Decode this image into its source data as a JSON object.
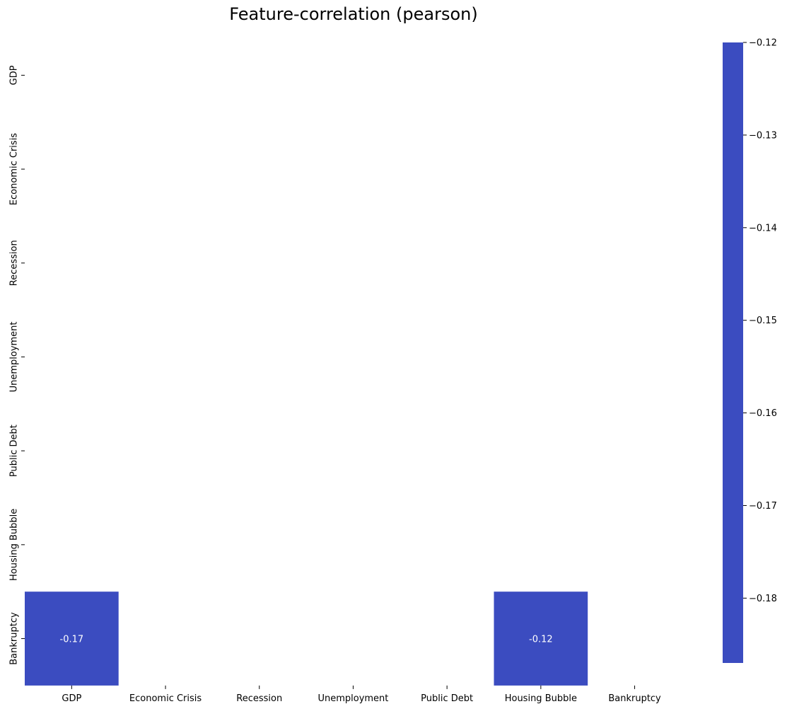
{
  "chart_data": {
    "type": "heatmap",
    "title": "Feature-correlation (pearson)",
    "xlabel": "",
    "ylabel": "",
    "x_categories": [
      "GDP",
      "Economic Crisis",
      "Recession",
      "Unemployment",
      "Public Debt",
      "Housing Bubble",
      "Bankruptcy"
    ],
    "y_categories": [
      "GDP",
      "Economic Crisis",
      "Recession",
      "Unemployment",
      "Public Debt",
      "Housing Bubble",
      "Bankruptcy"
    ],
    "cells": [
      {
        "row": "Bankruptcy",
        "col": "GDP",
        "value": -0.17,
        "label": "-0.17"
      },
      {
        "row": "Bankruptcy",
        "col": "Housing Bubble",
        "value": -0.12,
        "label": "-0.12"
      }
    ],
    "colorbar": {
      "range": [
        -0.187,
        -0.12
      ],
      "ticks": [
        -0.12,
        -0.13,
        -0.14,
        -0.15,
        -0.16,
        -0.17,
        -0.18
      ],
      "tick_labels": [
        "−0.12",
        "−0.13",
        "−0.14",
        "−0.15",
        "−0.16",
        "−0.17",
        "−0.18"
      ]
    },
    "cell_color": "#3b4cc0",
    "grid": false
  }
}
